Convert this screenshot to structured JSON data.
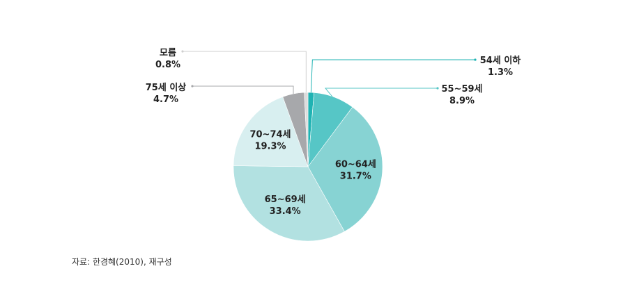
{
  "chart_data": {
    "type": "pie",
    "slices": [
      {
        "label": "54세 이하",
        "value": 1.3,
        "value_label": "1.3%",
        "color": "#1fb3b3"
      },
      {
        "label": "55~59세",
        "value": 8.9,
        "value_label": "8.9%",
        "color": "#56c6c6"
      },
      {
        "label": "60~64세",
        "value": 31.7,
        "value_label": "31.7%",
        "color": "#87d3d3"
      },
      {
        "label": "65~69세",
        "value": 33.4,
        "value_label": "33.4%",
        "color": "#b2e1e1"
      },
      {
        "label": "70~74세",
        "value": 19.3,
        "value_label": "19.3%",
        "color": "#d8eff0"
      },
      {
        "label": "75세 이상",
        "value": 4.7,
        "value_label": "4.7%",
        "color": "#a7a8ab"
      },
      {
        "label": "모름",
        "value": 0.8,
        "value_label": "0.8%",
        "color": "#dcdcdc"
      }
    ],
    "source": "자료: 한경혜(2010), 재구성"
  }
}
